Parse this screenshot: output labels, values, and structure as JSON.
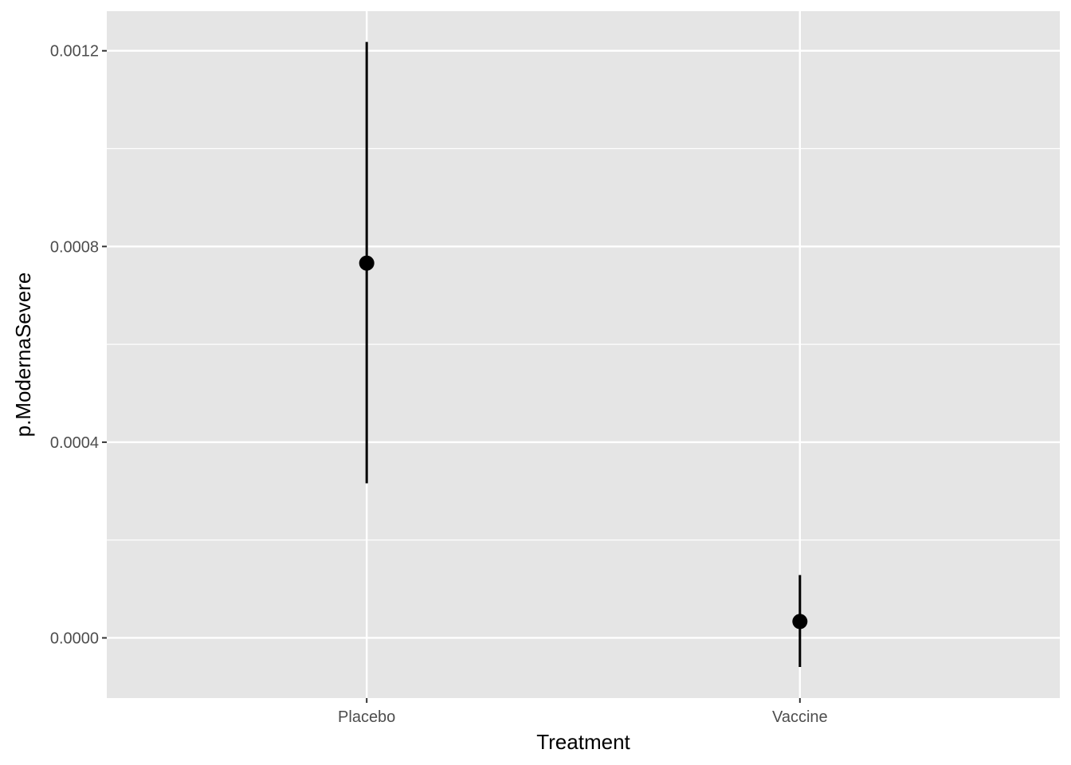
{
  "chart_data": {
    "type": "pointrange",
    "xlabel": "Treatment",
    "ylabel": "p.ModernaSevere",
    "categories": [
      "Placebo",
      "Vaccine"
    ],
    "estimates": [
      0.000766,
      3.35e-05
    ],
    "lower": [
      0.000316,
      -5.95e-05
    ],
    "upper": [
      0.001218,
      0.0001285
    ],
    "yticks": [
      0.0,
      0.0004,
      0.0008,
      0.0012
    ],
    "ytick_labels": [
      "0.0000",
      "0.0004",
      "0.0008",
      "0.0012"
    ],
    "ylim": [
      -0.000123,
      0.001281
    ],
    "grid": true,
    "colors": {
      "panel_background": "#e5e5e5",
      "grid_line": "#ffffff",
      "point": "#000000",
      "tick_label": "#4d4d4d",
      "axis_title": "#000000"
    }
  }
}
